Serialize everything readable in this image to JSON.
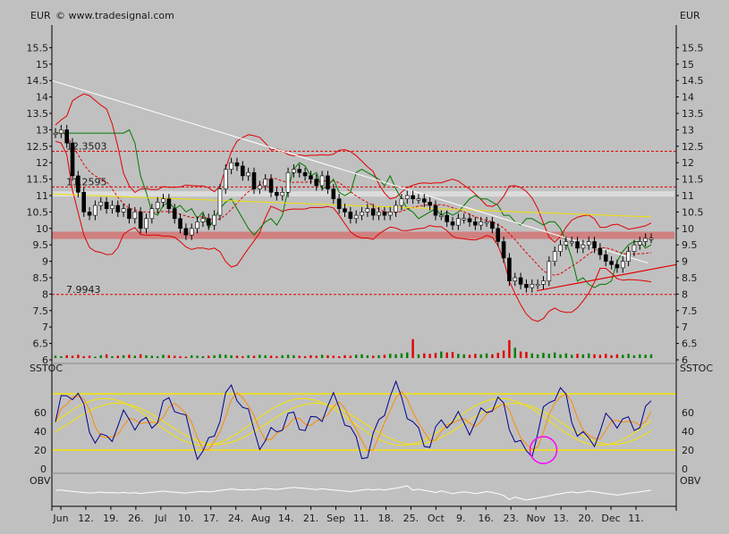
{
  "header": {
    "currency_left": "EUR",
    "currency_right": "EUR",
    "copyright": "© www.tradesignal.com"
  },
  "colors": {
    "background": "#c0c0c0",
    "bollinger": "#e00000",
    "green_line": "#007a00",
    "black_line": "#000000",
    "trend_white": "#ffffff",
    "sma_yellow": "#f0e000",
    "support_band": "#d08080",
    "stoch_blue": "#00008b",
    "stoch_orange": "#ff8c00",
    "stoch_yellow": "#f5e400",
    "highlight_circle": "#ff00ff",
    "vol_up": "#008000",
    "vol_down": "#e00000"
  },
  "chart_data": [
    {
      "type": "line",
      "panel": "price",
      "title": "",
      "ylim": [
        6,
        16
      ],
      "y_ticks": [
        "6",
        "6.5",
        "7",
        "7.5",
        "8",
        "8.5",
        "9",
        "9.5",
        "10",
        "10.5",
        "11",
        "11.5",
        "12",
        "12.5",
        "13",
        "13.5",
        "14",
        "14.5",
        "15",
        "15.5"
      ],
      "x_ticks": [
        "Jun",
        "12.",
        "19.",
        "26.",
        "Jul",
        "10.",
        "17.",
        "24.",
        "Aug",
        "14.",
        "21.",
        "Sep",
        "11.",
        "18.",
        "25.",
        "Oct",
        "9.",
        "16.",
        "23.",
        "Nov",
        "13.",
        "20.",
        "Dec",
        "11."
      ],
      "annotations": [
        {
          "label": "12.3503",
          "value": 12.35
        },
        {
          "label": "11.2595",
          "value": 11.26
        },
        {
          "label": "7.9943",
          "value": 7.99
        }
      ],
      "support_band": [
        9.68,
        9.9
      ],
      "resistance_band": [
        10.97,
        11.13
      ],
      "close": [
        12.9,
        13.0,
        12.6,
        11.6,
        11.1,
        10.5,
        10.4,
        10.7,
        10.8,
        10.6,
        10.7,
        10.5,
        10.6,
        10.3,
        10.5,
        10.0,
        10.3,
        10.6,
        10.8,
        10.9,
        10.6,
        10.3,
        10.0,
        9.8,
        10.0,
        10.2,
        10.3,
        10.1,
        10.4,
        11.2,
        11.8,
        12.0,
        11.9,
        11.6,
        11.7,
        11.2,
        11.3,
        11.5,
        11.1,
        11.0,
        11.1,
        11.7,
        11.8,
        11.7,
        11.6,
        11.5,
        11.3,
        11.6,
        11.2,
        10.9,
        10.6,
        10.5,
        10.3,
        10.4,
        10.5,
        10.6,
        10.4,
        10.5,
        10.4,
        10.5,
        10.7,
        10.9,
        11.0,
        10.9,
        10.9,
        10.8,
        10.7,
        10.4,
        10.4,
        10.2,
        10.1,
        10.3,
        10.3,
        10.2,
        10.1,
        10.2,
        10.2,
        10.0,
        9.6,
        9.1,
        8.4,
        8.5,
        8.3,
        8.2,
        8.3,
        8.3,
        8.4,
        9.0,
        9.3,
        9.5,
        9.6,
        9.6,
        9.4,
        9.5,
        9.6,
        9.4,
        9.2,
        9.0,
        8.9,
        8.8,
        9.0,
        9.3,
        9.5,
        9.6,
        9.7,
        9.7
      ],
      "sma_from": 11.05,
      "sma_to": 10.35,
      "trendline_from": 14.5,
      "trendline_to": 8.95,
      "series_names": []
    },
    {
      "type": "bar",
      "panel": "volume",
      "title": "",
      "ylim": [
        0,
        100
      ],
      "values": [
        5,
        4,
        6,
        5,
        7,
        4,
        5,
        3,
        6,
        8,
        4,
        5,
        6,
        7,
        5,
        8,
        6,
        5,
        4,
        7,
        6,
        5,
        4,
        3,
        6,
        5,
        4,
        5,
        6,
        8,
        7,
        6,
        5,
        4,
        6,
        5,
        7,
        6,
        5,
        4,
        6,
        7,
        6,
        5,
        4,
        6,
        5,
        7,
        6,
        5,
        4,
        6,
        5,
        7,
        8,
        6,
        5,
        6,
        7,
        9,
        8,
        10,
        12,
        40,
        8,
        10,
        9,
        11,
        14,
        12,
        13,
        9,
        8,
        7,
        9,
        8,
        10,
        8,
        11,
        16,
        38,
        22,
        14,
        13,
        10,
        8,
        11,
        9,
        12,
        8,
        10,
        7,
        9,
        8,
        10,
        8,
        7,
        9,
        6,
        8,
        7,
        9,
        6,
        8,
        7,
        8
      ]
    },
    {
      "type": "line",
      "panel": "sstoc",
      "title": "SSTOC",
      "ylim": [
        0,
        100
      ],
      "y_ticks": [
        "0",
        "20",
        "40",
        "60"
      ],
      "levels": [
        20,
        80
      ],
      "circle_at": {
        "index": 86,
        "value": 20
      }
    },
    {
      "type": "area",
      "panel": "obv",
      "title": "OBV"
    }
  ]
}
